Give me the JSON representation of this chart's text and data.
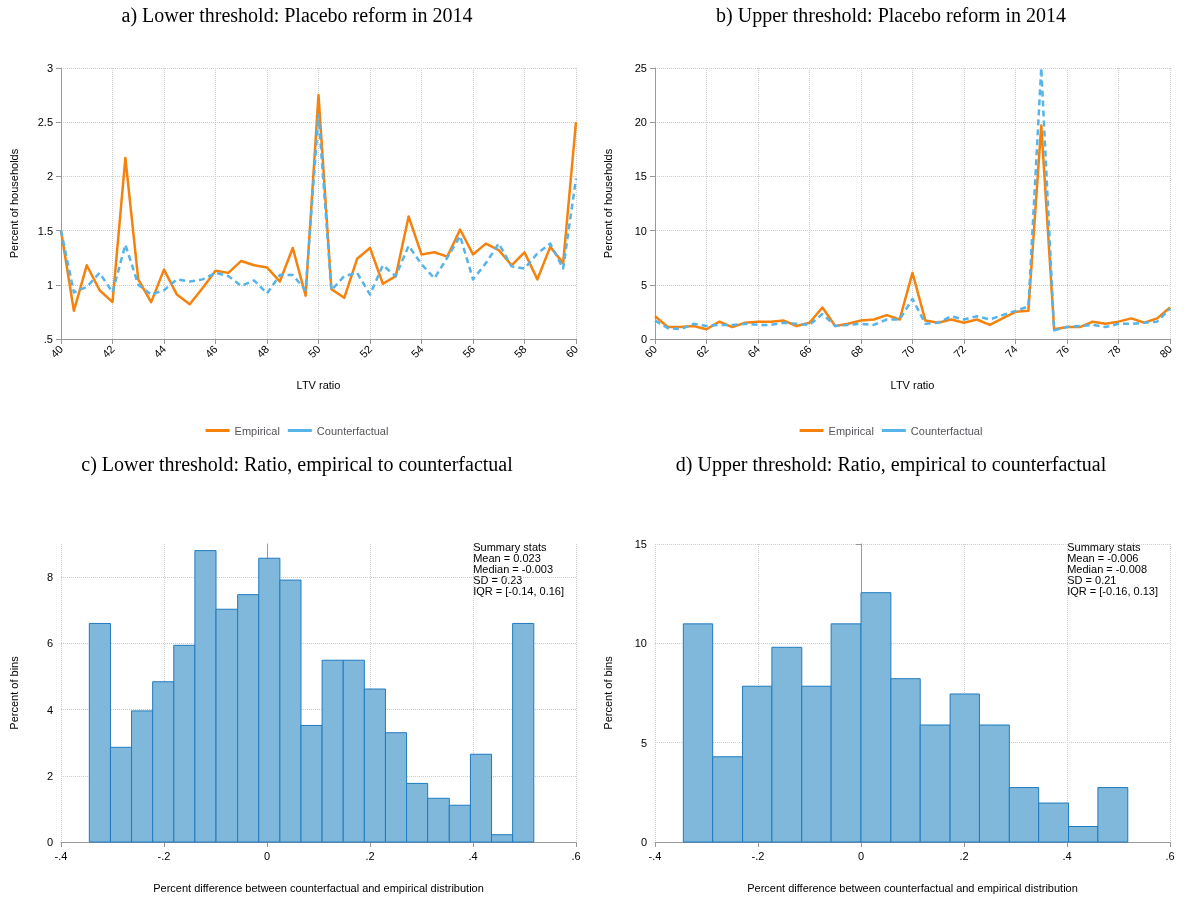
{
  "chart_data": [
    {
      "type": "line",
      "title": "a) Lower threshold: Placebo reform in 2014",
      "xlabel": "LTV ratio",
      "ylabel": "Percent of households",
      "x": [
        40,
        40.5,
        41,
        41.5,
        42,
        42.5,
        43,
        43.5,
        44,
        44.5,
        45,
        45.5,
        46,
        46.5,
        47,
        47.5,
        48,
        48.5,
        49,
        49.5,
        50,
        50.5,
        51,
        51.5,
        52,
        52.5,
        53,
        53.5,
        54,
        54.5,
        55,
        55.5,
        56,
        56.5,
        57,
        57.5,
        58,
        58.5,
        59,
        59.5,
        60
      ],
      "series": [
        {
          "name": "Empirical",
          "color": "#f5820d",
          "line_style": "solid",
          "values": [
            1.5,
            0.76,
            1.18,
            0.95,
            0.84,
            2.17,
            1.05,
            0.84,
            1.14,
            0.91,
            0.82,
            0.97,
            1.13,
            1.11,
            1.22,
            1.18,
            1.16,
            1.03,
            1.34,
            0.9,
            2.75,
            0.96,
            0.88,
            1.24,
            1.34,
            1.01,
            1.08,
            1.63,
            1.28,
            1.3,
            1.26,
            1.51,
            1.28,
            1.38,
            1.32,
            1.18,
            1.3,
            1.05,
            1.35,
            1.2,
            2.5
          ]
        },
        {
          "name": "Counterfactual",
          "color": "#56b4e9",
          "line_style": "dashed",
          "values": [
            1.5,
            0.93,
            0.98,
            1.11,
            0.93,
            1.37,
            1.0,
            0.91,
            0.95,
            1.05,
            1.03,
            1.05,
            1.11,
            1.08,
            0.99,
            1.04,
            0.92,
            1.09,
            1.09,
            0.95,
            2.57,
            0.95,
            1.08,
            1.11,
            0.91,
            1.18,
            1.08,
            1.36,
            1.19,
            1.06,
            1.25,
            1.45,
            1.05,
            1.2,
            1.38,
            1.17,
            1.15,
            1.29,
            1.38,
            1.15,
            1.98
          ]
        }
      ],
      "xlim": [
        40,
        60
      ],
      "xticks": [
        40,
        42,
        44,
        46,
        48,
        50,
        52,
        54,
        56,
        58,
        60
      ],
      "ylim": [
        0.5,
        3
      ],
      "yticks": [
        {
          "value": 0.5,
          "label": ".5"
        },
        1,
        1.5,
        2,
        2.5,
        3
      ],
      "grid": true,
      "legend": "bottom",
      "marker": "none"
    },
    {
      "type": "line",
      "title": "b) Upper threshold: Placebo reform in 2014",
      "xlabel": "LTV ratio",
      "ylabel": "Percent of households",
      "x": [
        60,
        60.5,
        61,
        61.5,
        62,
        62.5,
        63,
        63.5,
        64,
        64.5,
        65,
        65.5,
        66,
        66.5,
        67,
        67.5,
        68,
        68.5,
        69,
        69.5,
        70,
        70.5,
        71,
        71.5,
        72,
        72.5,
        73,
        73.5,
        74,
        74.5,
        75,
        75.5,
        76,
        76.5,
        77,
        77.5,
        78,
        78.5,
        79,
        79.5,
        80
      ],
      "series": [
        {
          "name": "Empirical",
          "color": "#f5820d",
          "line_style": "solid",
          "values": [
            2.1,
            1.1,
            1.1,
            1.2,
            0.9,
            1.6,
            1.1,
            1.5,
            1.6,
            1.6,
            1.7,
            1.2,
            1.5,
            2.9,
            1.2,
            1.4,
            1.7,
            1.8,
            2.2,
            1.8,
            6.1,
            1.7,
            1.5,
            1.8,
            1.5,
            1.8,
            1.3,
            1.9,
            2.5,
            2.6,
            19.7,
            0.9,
            1.1,
            1.1,
            1.6,
            1.4,
            1.6,
            1.9,
            1.5,
            1.9,
            2.9
          ]
        },
        {
          "name": "Counterfactual",
          "color": "#56b4e9",
          "line_style": "dashed",
          "values": [
            1.7,
            1.0,
            0.9,
            1.4,
            1.2,
            1.3,
            1.3,
            1.4,
            1.3,
            1.3,
            1.5,
            1.4,
            1.3,
            2.3,
            1.2,
            1.3,
            1.4,
            1.3,
            1.8,
            1.8,
            3.7,
            1.4,
            1.5,
            2.1,
            1.8,
            2.1,
            1.8,
            2.2,
            2.6,
            3.0,
            25,
            0.8,
            1.1,
            1.2,
            1.3,
            1.1,
            1.4,
            1.4,
            1.5,
            1.6,
            2.8
          ]
        }
      ],
      "xlim": [
        60,
        80
      ],
      "xticks": [
        60,
        62,
        64,
        66,
        68,
        70,
        72,
        74,
        76,
        78,
        80
      ],
      "ylim": [
        0,
        25
      ],
      "yticks": [
        0,
        5,
        10,
        15,
        20,
        25
      ],
      "grid": true,
      "legend": "bottom",
      "marker": "none"
    },
    {
      "type": "histogram",
      "title": "c) Lower threshold: Ratio, empirical to counterfactual",
      "xlabel": "Percent difference between counterfactual and empirical distribution",
      "ylabel": "Percent of bins",
      "color": "#80b8db",
      "bins": [
        -0.345,
        -0.304,
        -0.263,
        -0.222,
        -0.181,
        -0.14,
        -0.099,
        -0.057,
        -0.016,
        0.025,
        0.066,
        0.107,
        0.148,
        0.189,
        0.23,
        0.271,
        0.312,
        0.354,
        0.395,
        0.436,
        0.477,
        0.518
      ],
      "values": [
        6.6,
        2.86,
        3.96,
        4.84,
        5.94,
        8.8,
        7.03,
        7.47,
        8.57,
        7.91,
        3.52,
        5.49,
        5.49,
        4.62,
        3.3,
        1.77,
        1.32,
        1.11,
        2.65,
        0.22,
        6.6
      ],
      "xlim": [
        -0.4,
        0.6
      ],
      "xticks": [
        {
          "value": -0.4,
          "label": "-.4"
        },
        {
          "value": -0.2,
          "label": "-.2"
        },
        0,
        {
          "value": 0.2,
          "label": ".2"
        },
        {
          "value": 0.4,
          "label": ".4"
        },
        {
          "value": 0.6,
          "label": ".6"
        }
      ],
      "ylim": [
        0,
        9
      ],
      "yticks": [
        0,
        2,
        4,
        6,
        8
      ],
      "grid": true,
      "annotations": [
        "Summary stats",
        "Mean = 0.023",
        "Median = -0.003",
        "SD = 0.23",
        "IQR = [-0.14, 0.16]"
      ]
    },
    {
      "type": "histogram",
      "title": "d) Upper threshold: Ratio, empirical to counterfactual",
      "xlabel": "Percent difference between counterfactual and empirical distribution",
      "ylabel": "Percent of bins",
      "color": "#80b8db",
      "bins": [
        -0.345,
        -0.288,
        -0.23,
        -0.173,
        -0.115,
        -0.058,
        0,
        0.058,
        0.115,
        0.173,
        0.23,
        0.288,
        0.345,
        0.403,
        0.46,
        0.518
      ],
      "values": [
        10.98,
        4.29,
        7.84,
        9.8,
        7.84,
        10.98,
        12.55,
        8.22,
        5.89,
        7.45,
        5.89,
        2.74,
        1.96,
        0.78,
        2.74
      ],
      "xlim": [
        -0.4,
        0.6
      ],
      "xticks": [
        {
          "value": -0.4,
          "label": "-.4"
        },
        {
          "value": -0.2,
          "label": "-.2"
        },
        0,
        {
          "value": 0.2,
          "label": ".2"
        },
        {
          "value": 0.4,
          "label": ".4"
        },
        {
          "value": 0.6,
          "label": ".6"
        }
      ],
      "ylim": [
        0,
        15
      ],
      "yticks": [
        0,
        5,
        10,
        15
      ],
      "grid": true,
      "annotations": [
        "Summary stats",
        "Mean = -0.006",
        "Median = -0.008",
        "SD = 0.21",
        "IQR = [-0.16, 0.13]"
      ]
    }
  ]
}
